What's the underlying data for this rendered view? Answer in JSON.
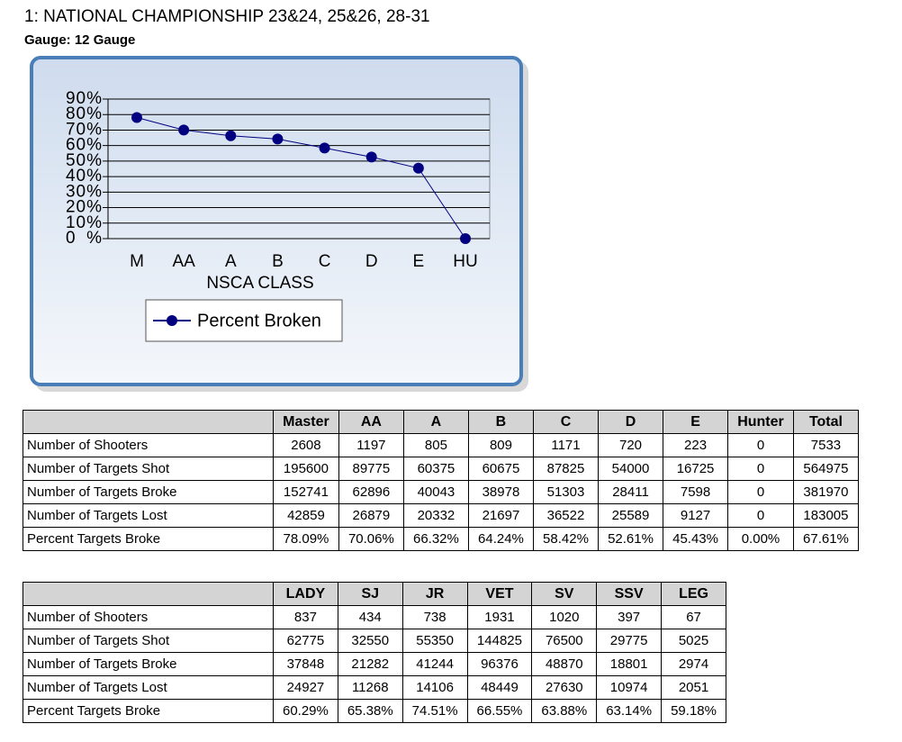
{
  "header": {
    "title": "1: NATIONAL CHAMPIONSHIP 23&24, 25&26, 28-31",
    "subtitle": "Gauge: 12 Gauge"
  },
  "chart_data": {
    "type": "line",
    "x_label": "NSCA CLASS",
    "categories": [
      "M",
      "AA",
      "A",
      "B",
      "C",
      "D",
      "E",
      "HU"
    ],
    "series": [
      {
        "name": "Percent Broken",
        "color": "#000080",
        "values": [
          78.09,
          70.06,
          66.32,
          64.24,
          58.42,
          52.61,
          45.43,
          0
        ]
      }
    ],
    "ylim": [
      0,
      90
    ],
    "yticks": [
      {
        "value": 0,
        "label": "0%"
      },
      {
        "value": 10,
        "label": "10%"
      },
      {
        "value": 20,
        "label": "20%"
      },
      {
        "value": 30,
        "label": "30%"
      },
      {
        "value": 40,
        "label": "40%"
      },
      {
        "value": 50,
        "label": "50%"
      },
      {
        "value": 60,
        "label": "60%"
      },
      {
        "value": 70,
        "label": "70%"
      },
      {
        "value": 80,
        "label": "80%"
      },
      {
        "value": 90,
        "label": "90%"
      }
    ],
    "grid": true,
    "legend": "bottom"
  },
  "tables": [
    {
      "columns": [
        "Master",
        "AA",
        "A",
        "B",
        "C",
        "D",
        "E",
        "Hunter",
        "Total"
      ],
      "rows": [
        [
          "Number of Shooters",
          "2608",
          "1197",
          "805",
          "809",
          "1171",
          "720",
          "223",
          "0",
          "7533"
        ],
        [
          "Number of Targets Shot",
          "195600",
          "89775",
          "60375",
          "60675",
          "87825",
          "54000",
          "16725",
          "0",
          "564975"
        ],
        [
          "Number of Targets Broke",
          "152741",
          "62896",
          "40043",
          "38978",
          "51303",
          "28411",
          "7598",
          "0",
          "381970"
        ],
        [
          "Number of Targets Lost",
          "42859",
          "26879",
          "20332",
          "21697",
          "36522",
          "25589",
          "9127",
          "0",
          "183005"
        ],
        [
          "Percent Targets Broke",
          "78.09%",
          "70.06%",
          "66.32%",
          "64.24%",
          "58.42%",
          "52.61%",
          "45.43%",
          "0.00%",
          "67.61%"
        ]
      ]
    },
    {
      "columns": [
        "LADY",
        "SJ",
        "JR",
        "VET",
        "SV",
        "SSV",
        "LEG"
      ],
      "rows": [
        [
          "Number of Shooters",
          "837",
          "434",
          "738",
          "1931",
          "1020",
          "397",
          "67"
        ],
        [
          "Number of Targets Shot",
          "62775",
          "32550",
          "55350",
          "144825",
          "76500",
          "29775",
          "5025"
        ],
        [
          "Number of Targets Broke",
          "37848",
          "21282",
          "41244",
          "96376",
          "48870",
          "18801",
          "2974"
        ],
        [
          "Number of Targets Lost",
          "24927",
          "11268",
          "14106",
          "48449",
          "27630",
          "10974",
          "2051"
        ],
        [
          "Percent Targets Broke",
          "60.29%",
          "65.38%",
          "74.51%",
          "66.55%",
          "63.88%",
          "63.14%",
          "59.18%"
        ]
      ]
    }
  ]
}
